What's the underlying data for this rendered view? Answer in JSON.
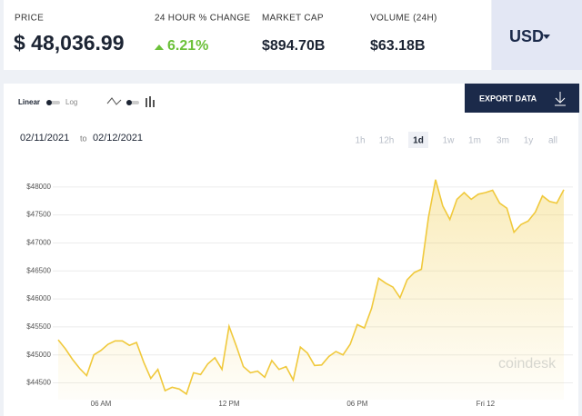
{
  "header": {
    "stats": [
      {
        "label": "PRICE",
        "value": "$ 48,036.99"
      },
      {
        "label": "24 HOUR % CHANGE",
        "value": "6.21%"
      },
      {
        "label": "MARKET CAP",
        "value": "$894.70B"
      },
      {
        "label": "VOLUME (24H)",
        "value": "$63.18B"
      }
    ],
    "currency": "USD"
  },
  "controls": {
    "linear": "Linear",
    "log": "Log",
    "export": "EXPORT DATA",
    "date_from": "02/11/2021",
    "to": "to",
    "date_to": "02/12/2021",
    "ranges": [
      "1h",
      "12h",
      "1d",
      "1w",
      "1m",
      "3m",
      "1y",
      "all"
    ],
    "active_range": "1d"
  },
  "watermark": "coindesk",
  "chart_data": {
    "type": "line",
    "color": "#f0c93c",
    "grid": true,
    "categories": [
      null,
      null,
      null,
      null,
      null,
      null,
      "06 AM",
      null,
      null,
      null,
      null,
      null,
      null,
      null,
      null,
      null,
      null,
      null,
      null,
      null,
      null,
      null,
      null,
      null,
      "12 PM",
      null,
      null,
      null,
      null,
      null,
      null,
      null,
      null,
      null,
      null,
      null,
      null,
      null,
      null,
      null,
      null,
      null,
      "06 PM",
      null,
      null,
      null,
      null,
      null,
      null,
      null,
      null,
      null,
      null,
      null,
      null,
      null,
      null,
      null,
      null,
      null,
      "Fri 12",
      null,
      null,
      null,
      null,
      null,
      null,
      null,
      null,
      null,
      null,
      null
    ],
    "values": [
      45270,
      45110,
      44920,
      44760,
      44630,
      45000,
      45080,
      45190,
      45250,
      45250,
      45170,
      45220,
      44870,
      44580,
      44740,
      44360,
      44420,
      44390,
      44300,
      44680,
      44650,
      44840,
      44950,
      44740,
      45510,
      45160,
      44790,
      44680,
      44710,
      44600,
      44900,
      44740,
      44790,
      44550,
      45140,
      45030,
      44810,
      44820,
      44970,
      45060,
      45000,
      45190,
      45540,
      45480,
      45830,
      46370,
      46280,
      46210,
      46020,
      46340,
      46470,
      46530,
      47460,
      48130,
      47660,
      47420,
      47780,
      47900,
      47780,
      47870,
      47900,
      47940,
      47710,
      47620,
      47190,
      47330,
      47390,
      47550,
      47840,
      47740,
      47710,
      47950
    ],
    "ylim": [
      44200,
      48500
    ],
    "yticks": [
      {
        "value": 44500,
        "label": "$44500"
      },
      {
        "value": 45000,
        "label": "$45000"
      },
      {
        "value": 45500,
        "label": "$45500"
      },
      {
        "value": 46000,
        "label": "$46000"
      },
      {
        "value": 46500,
        "label": "$46500"
      },
      {
        "value": 47000,
        "label": "$47000"
      },
      {
        "value": 47500,
        "label": "$47500"
      },
      {
        "value": 48000,
        "label": "$48000"
      }
    ]
  }
}
